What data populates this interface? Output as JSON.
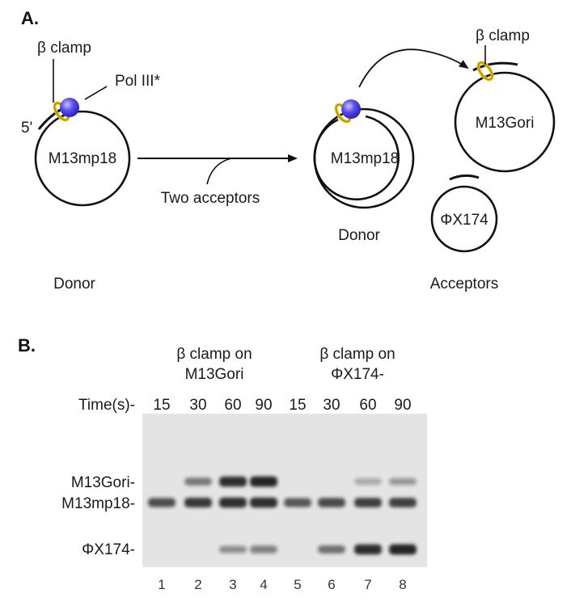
{
  "panel_a": {
    "label": "A.",
    "donor_left": {
      "beta_clamp_label": "β clamp",
      "pol_label": "Pol III*",
      "five_prime": "5'",
      "circle_label": "M13mp18",
      "caption": "Donor"
    },
    "arrow_label": "Two acceptors",
    "donor_right": {
      "circle_label": "M13mp18",
      "caption": "Donor"
    },
    "acceptor_m13": {
      "beta_clamp_label": "β clamp",
      "circle_label": "M13Gori"
    },
    "acceptor_phi": {
      "circle_label": "ΦX174"
    },
    "acceptors_caption": "Acceptors"
  },
  "panel_b": {
    "label": "B.",
    "group1_line1": "β clamp on",
    "group1_line2": "M13Gori",
    "group2_line1": "β clamp on",
    "group2_line2": "ΦX174-",
    "time_label": "Time(s)-",
    "times": [
      "15",
      "30",
      "60",
      "90",
      "15",
      "30",
      "60",
      "90"
    ],
    "row_labels": {
      "m13gori": "M13Gori-",
      "m13mp18": "M13mp18-",
      "phix174": "ΦX174-"
    },
    "lanes": [
      "1",
      "2",
      "3",
      "4",
      "5",
      "6",
      "7",
      "8"
    ],
    "band_intensity": {
      "m13gori": [
        0,
        0.45,
        0.9,
        0.95,
        0,
        0,
        0.15,
        0.25
      ],
      "m13mp18": [
        0.7,
        0.85,
        0.9,
        0.9,
        0.65,
        0.75,
        0.8,
        0.8
      ],
      "phix174": [
        0,
        0,
        0.3,
        0.4,
        0,
        0.5,
        0.9,
        0.95
      ]
    }
  },
  "colors": {
    "polymerase": "#4a3fd6",
    "clamp": "#e3c21a",
    "ink": "#111111",
    "gel_background": "#e4e4e4",
    "band": "#1e1e1e"
  }
}
